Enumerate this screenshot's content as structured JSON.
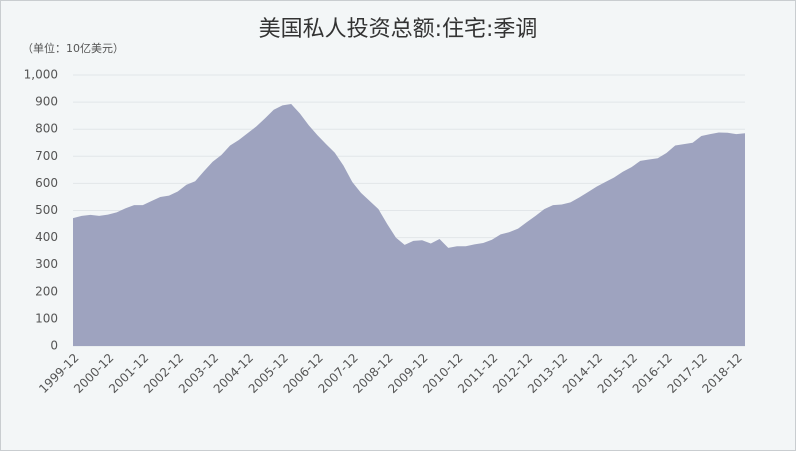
{
  "chart_data": {
    "type": "area",
    "title": "美国私人投资总额:住宅:季调",
    "subtitle": "（单位：10亿美元）",
    "categories": [
      "1999-12",
      null,
      null,
      null,
      "2000-12",
      null,
      null,
      null,
      "2001-12",
      null,
      null,
      null,
      "2002-12",
      null,
      null,
      null,
      "2003-12",
      null,
      null,
      null,
      "2004-12",
      null,
      null,
      null,
      "2005-12",
      null,
      null,
      null,
      "2006-12",
      null,
      null,
      null,
      "2007-12",
      null,
      null,
      null,
      "2008-12",
      null,
      null,
      null,
      "2009-12",
      null,
      null,
      null,
      "2010-12",
      null,
      null,
      null,
      "2011-12",
      null,
      null,
      null,
      "2012-12",
      null,
      null,
      null,
      "2013-12",
      null,
      null,
      null,
      "2014-12",
      null,
      null,
      null,
      "2015-12",
      null,
      null,
      null,
      "2016-12",
      null,
      null,
      null,
      "2017-12",
      null,
      null,
      null,
      "2018-12",
      null
    ],
    "values": [
      472,
      480,
      484,
      480,
      485,
      493,
      508,
      520,
      520,
      535,
      550,
      555,
      570,
      595,
      608,
      645,
      680,
      705,
      740,
      760,
      785,
      810,
      840,
      872,
      888,
      893,
      858,
      815,
      778,
      745,
      713,
      665,
      605,
      565,
      535,
      505,
      450,
      400,
      373,
      388,
      390,
      378,
      395,
      362,
      368,
      368,
      375,
      380,
      392,
      412,
      420,
      433,
      457,
      480,
      505,
      520,
      522,
      530,
      548,
      568,
      588,
      605,
      622,
      643,
      660,
      683,
      688,
      693,
      712,
      740,
      745,
      750,
      775,
      782,
      788,
      787,
      782,
      785
    ],
    "color": "#9ea3bf",
    "ylim": [
      0,
      1000
    ],
    "yticks": [
      0,
      100,
      200,
      300,
      400,
      500,
      600,
      700,
      800,
      900,
      {
        "value": 1000,
        "label": "1,000"
      }
    ],
    "grid": true
  }
}
